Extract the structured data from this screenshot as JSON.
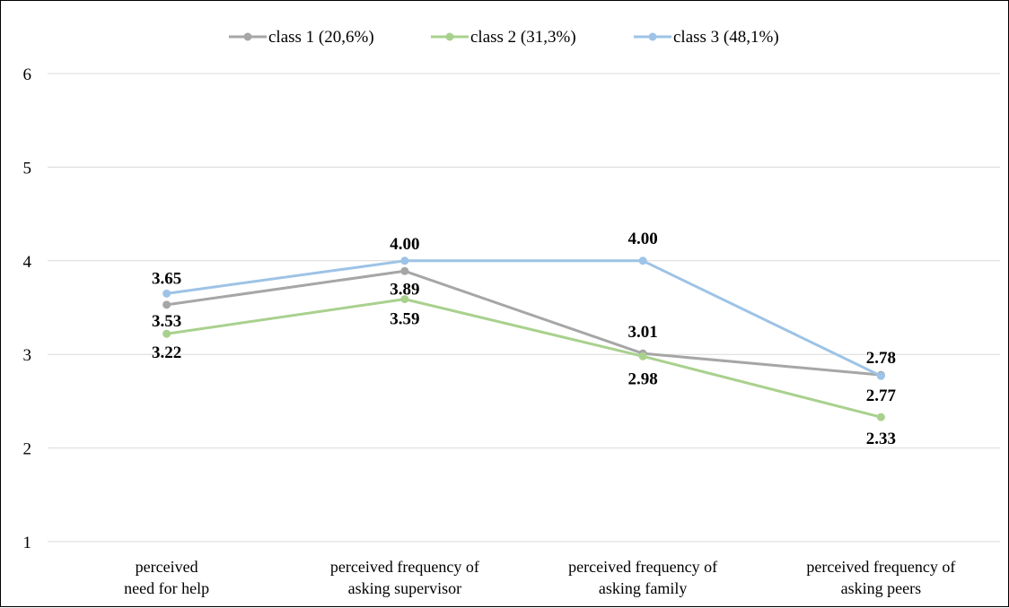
{
  "chart_data": {
    "type": "line",
    "title": "",
    "xlabel": "",
    "ylabel": "",
    "categories": [
      [
        "perceived",
        "need for help"
      ],
      [
        "perceived frequency of",
        "asking supervisor"
      ],
      [
        "perceived frequency of",
        "asking family"
      ],
      [
        "perceived frequency of",
        "asking peers"
      ]
    ],
    "ylim": [
      1,
      6
    ],
    "yticks": [
      "1",
      "2",
      "3",
      "4",
      "5",
      "6"
    ],
    "grid": true,
    "legend_position": "top",
    "series": [
      {
        "name": "class 1 (20,6%)",
        "color": "#a6a6a6",
        "values": [
          3.53,
          3.89,
          3.01,
          2.78
        ],
        "labels": [
          "3.53",
          "3.89",
          "3.01",
          "2.78"
        ]
      },
      {
        "name": "class 2 (31,3%)",
        "color": "#a9d18e",
        "values": [
          3.22,
          3.59,
          2.98,
          2.33
        ],
        "labels": [
          "3.22",
          "3.59",
          "2.98",
          "2.33"
        ]
      },
      {
        "name": "class 3 (48,1%)",
        "color": "#9dc3e6",
        "values": [
          3.65,
          4.0,
          4.0,
          2.77
        ],
        "labels": [
          "3.65",
          "4.00",
          "4.00",
          "2.77"
        ]
      }
    ]
  }
}
